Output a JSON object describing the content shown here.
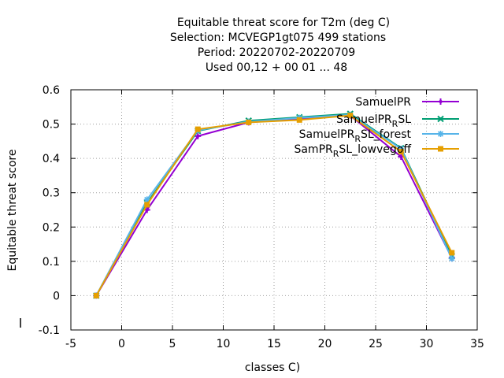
{
  "chart_data": {
    "type": "line",
    "title": [
      "Equitable threat score  for T2m (deg C)",
      "Selection: MCVEGP1gt075     499 stations",
      "Period: 20220702-20220709",
      "Used  00,12  + 00 01 ... 48"
    ],
    "xlabel": "classes C)",
    "ylabel": "Equitable threat score",
    "xlim": [
      -5,
      35
    ],
    "ylim": [
      -0.1,
      0.6
    ],
    "xticks": [
      -5,
      0,
      5,
      10,
      15,
      20,
      25,
      30,
      35
    ],
    "yticks": [
      -0.1,
      0,
      0.1,
      0.2,
      0.3,
      0.4,
      0.5,
      0.6
    ],
    "grid": true,
    "legend_position": "top-right",
    "x": [
      -2.5,
      2.5,
      7.5,
      12.5,
      17.5,
      22.5,
      27.5,
      32.5
    ],
    "series": [
      {
        "name": "SamuelPR",
        "legend_main": "SamuelPR",
        "legend_sub": "",
        "legend_tail": "",
        "color": "#9400d3",
        "marker": "plus",
        "values": [
          0.0,
          0.25,
          0.465,
          0.505,
          0.515,
          0.525,
          0.405,
          0.11
        ]
      },
      {
        "name": "SamuelPR_RSL",
        "legend_main": "SamuelPR",
        "legend_sub": "R",
        "legend_tail": "SL",
        "color": "#009e73",
        "marker": "cross",
        "values": [
          0.0,
          0.27,
          0.48,
          0.51,
          0.52,
          0.53,
          0.43,
          0.115
        ]
      },
      {
        "name": "SamuelPR_RSL_forest",
        "legend_main": "SamuelPR",
        "legend_sub": "R",
        "legend_tail": "SL_forest",
        "color": "#56b4e9",
        "marker": "star",
        "values": [
          0.0,
          0.28,
          0.482,
          0.507,
          0.518,
          0.527,
          0.428,
          0.108
        ]
      },
      {
        "name": "SamPR_RSL_lowvegoff",
        "legend_main": "SamPR",
        "legend_sub": "R",
        "legend_tail": "SL_lowvegoff",
        "color": "#e69f00",
        "marker": "square",
        "values": [
          0.0,
          0.265,
          0.485,
          0.505,
          0.512,
          0.525,
          0.42,
          0.125
        ]
      }
    ]
  }
}
